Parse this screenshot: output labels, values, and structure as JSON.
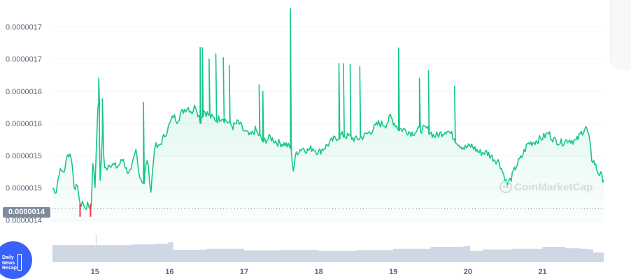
{
  "chart_data": {
    "type": "area",
    "y_tick_labels": [
      "0.0000017",
      "0.0000017",
      "0.0000016",
      "0.0000016",
      "0.0000015",
      "0.0000015",
      "0.0000014"
    ],
    "y_ticks": [
      1.7e-06,
      1.65e-06,
      1.6e-06,
      1.55e-06,
      1.5e-06,
      1.45e-06,
      1.4e-06
    ],
    "ylim": [
      1.395e-06,
      1.72e-06
    ],
    "x_tick_labels": [
      "15",
      "16",
      "17",
      "18",
      "19",
      "20",
      "21"
    ],
    "x_ticks": [
      15,
      16,
      17,
      18,
      19,
      20,
      21
    ],
    "xlim": [
      14.43,
      21.82
    ],
    "grid": "horizontal",
    "current_price_label": "0.0000014",
    "current_price": 1.418e-06,
    "line_color": "#16c784",
    "drop_color": "#ea3943",
    "volume_color": "#cfd6e4",
    "price_points": [
      [
        14.43,
        1.449
      ],
      [
        14.48,
        1.445
      ],
      [
        14.52,
        1.475
      ],
      [
        14.6,
        1.477
      ],
      [
        14.62,
        1.502
      ],
      [
        14.68,
        1.5
      ],
      [
        14.72,
        1.455
      ],
      [
        14.78,
        1.445
      ],
      [
        14.8,
        1.42
      ],
      [
        14.83,
        1.43
      ],
      [
        14.86,
        1.418
      ],
      [
        14.9,
        1.422
      ],
      [
        14.95,
        1.42
      ],
      [
        14.97,
        1.492
      ],
      [
        15.0,
        1.452
      ],
      [
        15.03,
        1.555
      ],
      [
        15.05,
        1.585
      ],
      [
        15.07,
        1.462
      ],
      [
        15.1,
        1.532
      ],
      [
        15.13,
        1.478
      ],
      [
        15.2,
        1.488
      ],
      [
        15.3,
        1.482
      ],
      [
        15.38,
        1.495
      ],
      [
        15.42,
        1.478
      ],
      [
        15.48,
        1.474
      ],
      [
        15.55,
        1.508
      ],
      [
        15.6,
        1.468
      ],
      [
        15.65,
        1.458
      ],
      [
        15.7,
        1.495
      ],
      [
        15.75,
        1.445
      ],
      [
        15.8,
        1.515
      ],
      [
        15.85,
        1.512
      ],
      [
        15.92,
        1.528
      ],
      [
        16.0,
        1.548
      ],
      [
        16.05,
        1.562
      ],
      [
        16.1,
        1.555
      ],
      [
        16.17,
        1.568
      ],
      [
        16.2,
        1.572
      ],
      [
        16.25,
        1.575
      ],
      [
        16.3,
        1.568
      ],
      [
        16.35,
        1.578
      ],
      [
        16.41,
        1.555
      ],
      [
        16.46,
        1.57
      ],
      [
        16.55,
        1.56
      ],
      [
        16.63,
        1.555
      ],
      [
        16.7,
        1.56
      ],
      [
        16.78,
        1.552
      ],
      [
        16.85,
        1.545
      ],
      [
        16.92,
        1.552
      ],
      [
        17.0,
        1.538
      ],
      [
        17.08,
        1.53
      ],
      [
        17.15,
        1.54
      ],
      [
        17.25,
        1.522
      ],
      [
        17.35,
        1.528
      ],
      [
        17.45,
        1.52
      ],
      [
        17.55,
        1.518
      ],
      [
        17.62,
        1.512
      ],
      [
        17.66,
        1.478
      ],
      [
        17.7,
        1.505
      ],
      [
        17.78,
        1.512
      ],
      [
        17.85,
        1.508
      ],
      [
        17.92,
        1.512
      ],
      [
        18.0,
        1.505
      ],
      [
        18.1,
        1.515
      ],
      [
        18.2,
        1.525
      ],
      [
        18.3,
        1.532
      ],
      [
        18.4,
        1.53
      ],
      [
        18.5,
        1.525
      ],
      [
        18.6,
        1.53
      ],
      [
        18.7,
        1.538
      ],
      [
        18.8,
        1.55
      ],
      [
        18.9,
        1.548
      ],
      [
        18.96,
        1.56
      ],
      [
        19.0,
        1.553
      ],
      [
        19.07,
        1.542
      ],
      [
        19.15,
        1.54
      ],
      [
        19.25,
        1.535
      ],
      [
        19.35,
        1.54
      ],
      [
        19.45,
        1.542
      ],
      [
        19.55,
        1.53
      ],
      [
        19.65,
        1.535
      ],
      [
        19.72,
        1.54
      ],
      [
        19.8,
        1.53
      ],
      [
        19.88,
        1.518
      ],
      [
        19.95,
        1.512
      ],
      [
        20.05,
        1.515
      ],
      [
        20.15,
        1.505
      ],
      [
        20.25,
        1.505
      ],
      [
        20.35,
        1.495
      ],
      [
        20.42,
        1.49
      ],
      [
        20.48,
        1.47
      ],
      [
        20.53,
        1.455
      ],
      [
        20.58,
        1.465
      ],
      [
        20.65,
        1.485
      ],
      [
        20.72,
        1.498
      ],
      [
        20.8,
        1.518
      ],
      [
        20.9,
        1.522
      ],
      [
        21.0,
        1.528
      ],
      [
        21.08,
        1.535
      ],
      [
        21.15,
        1.525
      ],
      [
        21.25,
        1.52
      ],
      [
        21.35,
        1.525
      ],
      [
        21.45,
        1.522
      ],
      [
        21.52,
        1.535
      ],
      [
        21.58,
        1.545
      ],
      [
        21.62,
        1.53
      ],
      [
        21.66,
        1.495
      ],
      [
        21.7,
        1.488
      ],
      [
        21.74,
        1.475
      ],
      [
        21.78,
        1.47
      ],
      [
        21.82,
        1.462
      ]
    ],
    "spikes": [
      [
        15.05,
        1.62
      ],
      [
        15.1,
        1.588
      ],
      [
        15.65,
        1.583
      ],
      [
        16.41,
        1.668
      ],
      [
        16.44,
        1.668
      ],
      [
        16.53,
        1.65
      ],
      [
        16.62,
        1.658
      ],
      [
        16.72,
        1.652
      ],
      [
        16.8,
        1.64
      ],
      [
        17.2,
        1.61
      ],
      [
        17.25,
        1.6
      ],
      [
        17.62,
        1.728
      ],
      [
        18.27,
        1.643
      ],
      [
        18.33,
        1.643
      ],
      [
        18.42,
        1.642
      ],
      [
        18.55,
        1.638
      ],
      [
        19.07,
        1.667
      ],
      [
        19.35,
        1.62
      ],
      [
        19.47,
        1.632
      ],
      [
        19.82,
        1.608
      ]
    ],
    "drops": [
      [
        14.8,
        1.405
      ],
      [
        14.94,
        1.405
      ]
    ],
    "volume": [
      [
        14.43,
        0.62
      ],
      [
        15.0,
        0.58
      ],
      [
        15.01,
        1.0
      ],
      [
        15.02,
        0.62
      ],
      [
        15.5,
        0.64
      ],
      [
        15.8,
        0.66
      ],
      [
        15.98,
        0.72
      ],
      [
        16.05,
        0.45
      ],
      [
        16.5,
        0.48
      ],
      [
        17.0,
        0.42
      ],
      [
        17.5,
        0.44
      ],
      [
        18.0,
        0.4
      ],
      [
        18.5,
        0.43
      ],
      [
        19.0,
        0.48
      ],
      [
        19.5,
        0.55
      ],
      [
        19.95,
        0.58
      ],
      [
        20.03,
        0.4
      ],
      [
        20.2,
        0.46
      ],
      [
        20.6,
        0.48
      ],
      [
        21.0,
        0.55
      ],
      [
        21.3,
        0.5
      ],
      [
        21.5,
        0.48
      ],
      [
        21.62,
        0.46
      ],
      [
        21.68,
        0.35
      ],
      [
        21.82,
        0.33
      ]
    ]
  }
}
